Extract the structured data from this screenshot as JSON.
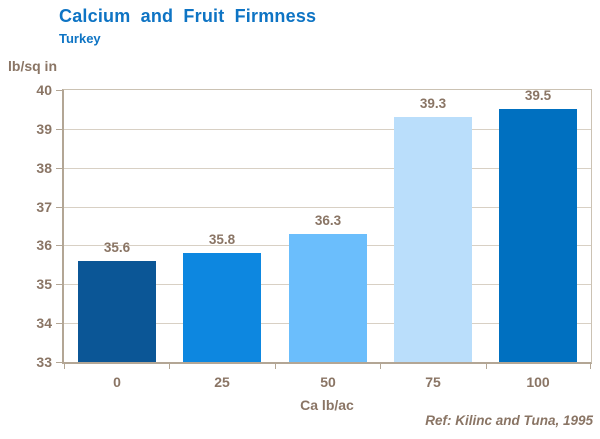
{
  "header": {
    "title": "Calcium and Fruit Firmness",
    "subtitle": "Turkey"
  },
  "chart_data": {
    "type": "bar",
    "title": "Calcium and Fruit Firmness",
    "subtitle": "Turkey",
    "categories": [
      "0",
      "25",
      "50",
      "75",
      "100"
    ],
    "values": [
      35.6,
      35.8,
      36.3,
      39.3,
      39.5
    ],
    "bar_labels": [
      "35.6",
      "35.8",
      "36.3",
      "39.3",
      "39.5"
    ],
    "bar_colors": [
      "#0b5696",
      "#0d87e0",
      "#6bbefc",
      "#badefb",
      "#0070c0"
    ],
    "xlabel": "Ca lb/ac",
    "ylabel": "lb/sq in",
    "ylim": [
      33,
      40
    ],
    "yticks": [
      33,
      34,
      35,
      36,
      37,
      38,
      39,
      40
    ],
    "grid": "horizontal",
    "legend": "none"
  },
  "footer": {
    "reference": "Ref: Kilinc and Tuna, 1995"
  },
  "colors": {
    "title_blue": "#0e74c4",
    "axis_text_brown": "#8a7565",
    "gridline": "#d8d0c4",
    "axis_line_dark": "#b3a695",
    "axis_line_light": "#cbc2b3",
    "background": "#ffffff"
  }
}
